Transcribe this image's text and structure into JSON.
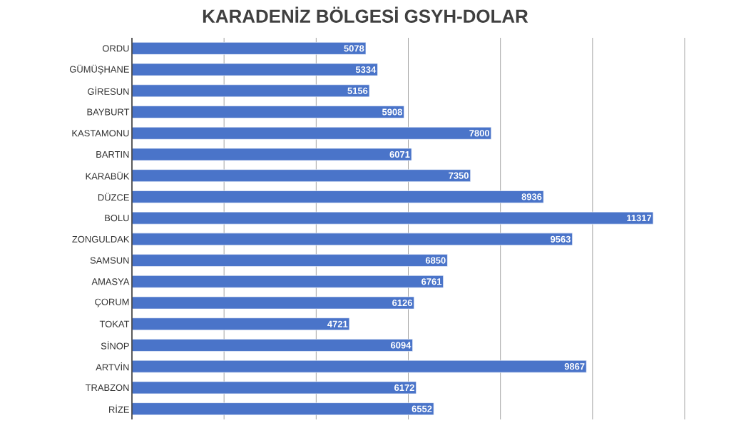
{
  "chart_data": {
    "type": "bar",
    "orientation": "horizontal",
    "title": "KARADENİZ BÖLGESİ GSYH-DOLAR",
    "categories": [
      "ORDU",
      "GÜMÜŞHANE",
      "GİRESUN",
      "BAYBURT",
      "KASTAMONU",
      "BARTIN",
      "KARABÜK",
      "DÜZCE",
      "BOLU",
      "ZONGULDAK",
      "SAMSUN",
      "AMASYA",
      "ÇORUM",
      "TOKAT",
      "SİNOP",
      "ARTVİN",
      "TRABZON",
      "RİZE"
    ],
    "values": [
      5078,
      5334,
      5156,
      5908,
      7800,
      6071,
      7350,
      8936,
      11317,
      9563,
      6850,
      6761,
      6126,
      4721,
      6094,
      9867,
      6172,
      6552
    ],
    "color": "#4a74c9",
    "data_labels": true,
    "grid": "x",
    "tick_labels": "y",
    "xlim": [
      0,
      12000
    ],
    "xticks": [
      {
        "value": 0,
        "label": null
      },
      {
        "value": 2000,
        "label": null
      },
      {
        "value": 4000,
        "label": null
      },
      {
        "value": 6000,
        "label": null
      },
      {
        "value": 8000,
        "label": null
      },
      {
        "value": 10000,
        "label": null
      },
      {
        "value": 12000,
        "label": null
      }
    ]
  }
}
